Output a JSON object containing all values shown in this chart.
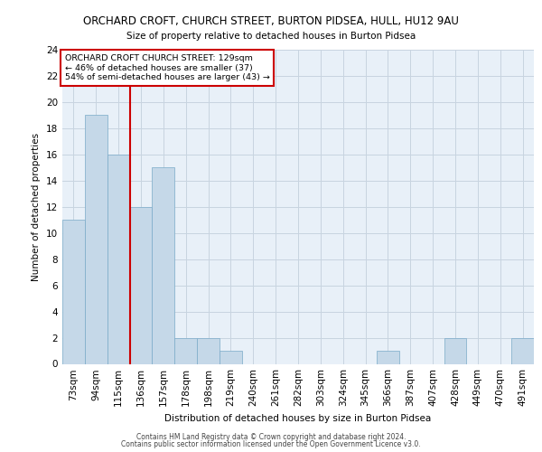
{
  "title_line1": "ORCHARD CROFT, CHURCH STREET, BURTON PIDSEA, HULL, HU12 9AU",
  "title_line2": "Size of property relative to detached houses in Burton Pidsea",
  "xlabel": "Distribution of detached houses by size in Burton Pidsea",
  "ylabel": "Number of detached properties",
  "categories": [
    "73sqm",
    "94sqm",
    "115sqm",
    "136sqm",
    "157sqm",
    "178sqm",
    "198sqm",
    "219sqm",
    "240sqm",
    "261sqm",
    "282sqm",
    "303sqm",
    "324sqm",
    "345sqm",
    "366sqm",
    "387sqm",
    "407sqm",
    "428sqm",
    "449sqm",
    "470sqm",
    "491sqm"
  ],
  "values": [
    11,
    19,
    16,
    12,
    15,
    2,
    2,
    1,
    0,
    0,
    0,
    0,
    0,
    0,
    1,
    0,
    0,
    2,
    0,
    0,
    2
  ],
  "bar_color": "#c5d8e8",
  "bar_edge_color": "#7aaac8",
  "vline_color": "#cc0000",
  "annotation_text": "ORCHARD CROFT CHURCH STREET: 129sqm\n← 46% of detached houses are smaller (37)\n54% of semi-detached houses are larger (43) →",
  "annotation_box_color": "#ffffff",
  "annotation_box_edge": "#cc0000",
  "ylim": [
    0,
    24
  ],
  "yticks": [
    0,
    2,
    4,
    6,
    8,
    10,
    12,
    14,
    16,
    18,
    20,
    22,
    24
  ],
  "grid_color": "#c8d4e0",
  "background_color": "#e8f0f8",
  "footer_line1": "Contains HM Land Registry data © Crown copyright and database right 2024.",
  "footer_line2": "Contains public sector information licensed under the Open Government Licence v3.0."
}
